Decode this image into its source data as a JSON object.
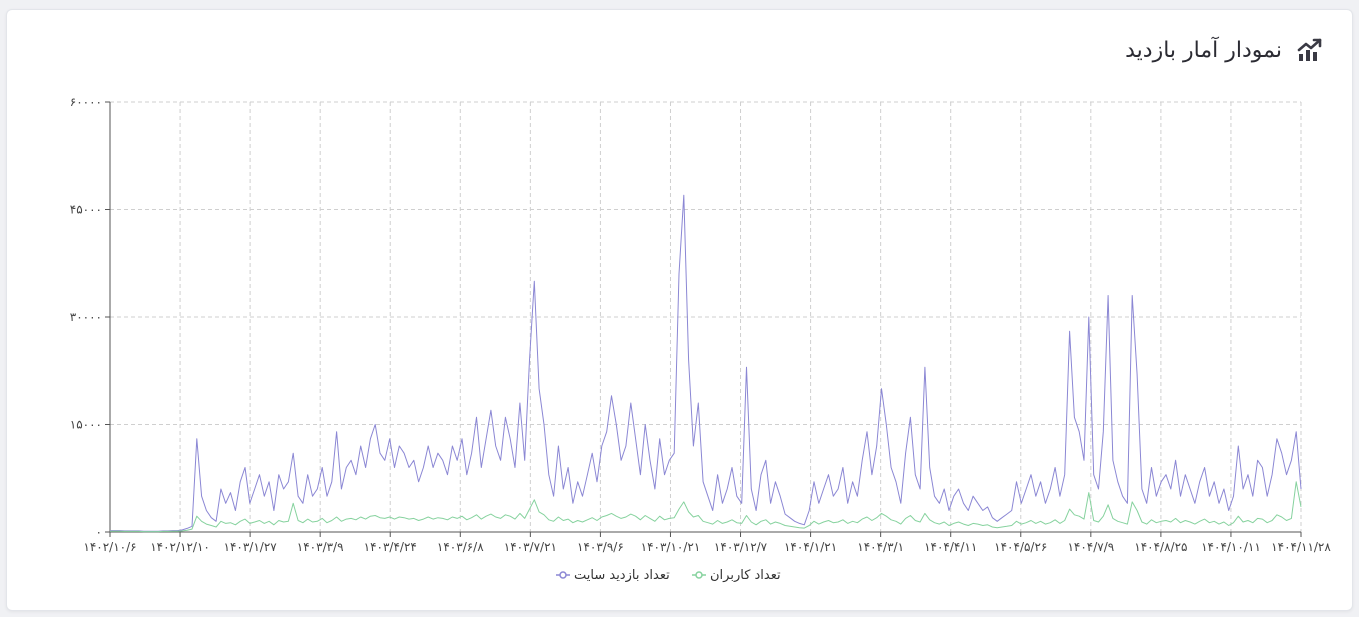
{
  "header": {
    "title": "نمودار آمار بازدید",
    "icon": "trending-up-chart-icon"
  },
  "colors": {
    "visits": "#8b87d4",
    "users": "#86d29e",
    "grid": "#cfcfcf",
    "axis": "#555555"
  },
  "chart_data": {
    "type": "line",
    "title": "",
    "xlabel": "",
    "ylabel": "",
    "ylim": [
      0,
      60000
    ],
    "yticks": [
      "۰",
      "۱۵۰۰۰",
      "۳۰۰۰۰",
      "۴۵۰۰۰",
      "۶۰۰۰۰"
    ],
    "xticks": [
      "۱۴۰۲/۱۰/۶",
      "۱۴۰۲/۱۲/۱۰",
      "۱۴۰۳/۱/۲۷",
      "۱۴۰۳/۳/۹",
      "۱۴۰۳/۴/۲۴",
      "۱۴۰۳/۶/۸",
      "۱۴۰۳/۷/۲۱",
      "۱۴۰۳/۹/۶",
      "۱۴۰۳/۱۰/۲۱",
      "۱۴۰۳/۱۲/۷",
      "۱۴۰۴/۱/۲۱",
      "۱۴۰۴/۳/۱",
      "۱۴۰۴/۴/۱۱",
      "۱۴۰۴/۵/۲۶",
      "۱۴۰۴/۷/۹",
      "۱۴۰۴/۸/۲۵",
      "۱۴۰۴/۱۰/۱۱",
      "۱۴۰۴/۱۱/۲۸"
    ],
    "grid": true,
    "legend_position": "bottom-center",
    "series": [
      {
        "name": "تعداد بازدید سایت",
        "values": [
          200,
          200,
          200,
          150,
          150,
          150,
          150,
          100,
          100,
          100,
          100,
          150,
          150,
          200,
          200,
          300,
          500,
          800,
          13000,
          5000,
          3000,
          2000,
          1500,
          6000,
          4000,
          5500,
          3000,
          7000,
          9000,
          4000,
          6000,
          8000,
          5000,
          7000,
          3000,
          8000,
          6000,
          7000,
          11000,
          5000,
          4000,
          8000,
          5000,
          6000,
          9000,
          5000,
          7000,
          14000,
          6000,
          9000,
          10000,
          8000,
          12000,
          9000,
          13000,
          15000,
          11000,
          10000,
          13000,
          9000,
          12000,
          11000,
          9000,
          10000,
          7000,
          9000,
          12000,
          9000,
          11000,
          10000,
          8000,
          12000,
          10000,
          13000,
          8000,
          11000,
          16000,
          9000,
          13000,
          17000,
          12000,
          10000,
          16000,
          13000,
          9000,
          18000,
          10000,
          24000,
          35000,
          20000,
          15000,
          8000,
          5000,
          12000,
          6000,
          9000,
          4000,
          7000,
          5000,
          8000,
          11000,
          7000,
          12000,
          14000,
          19000,
          15000,
          10000,
          12000,
          18000,
          13000,
          8000,
          15000,
          10000,
          6000,
          13000,
          8000,
          10000,
          11000,
          36000,
          47000,
          24000,
          12000,
          18000,
          7000,
          5000,
          3000,
          8000,
          4000,
          6000,
          9000,
          5000,
          4000,
          23000,
          6000,
          3000,
          8000,
          10000,
          4000,
          7000,
          5000,
          2500,
          2000,
          1500,
          1200,
          1000,
          3000,
          7000,
          4000,
          6000,
          8000,
          5000,
          6000,
          9000,
          4000,
          7000,
          5000,
          10000,
          14000,
          8000,
          12000,
          20000,
          15000,
          9000,
          7000,
          4000,
          11000,
          16000,
          8000,
          6000,
          23000,
          9000,
          5000,
          4000,
          6000,
          3000,
          5000,
          6000,
          4000,
          3000,
          5000,
          4000,
          3000,
          3500,
          2000,
          1500,
          2000,
          2500,
          3000,
          7000,
          4000,
          6000,
          8000,
          5000,
          7000,
          4000,
          6000,
          9000,
          5000,
          8000,
          28000,
          16000,
          14000,
          10000,
          30000,
          8000,
          6000,
          14000,
          33000,
          10000,
          7000,
          5000,
          4000,
          33000,
          22000,
          6000,
          4000,
          9000,
          5000,
          7000,
          8000,
          6000,
          10000,
          5000,
          8000,
          6000,
          4000,
          7000,
          9000,
          5000,
          7000,
          4000,
          6000,
          3000,
          5000,
          12000,
          6000,
          8000,
          5000,
          10000,
          9000,
          5000,
          8000,
          13000,
          11000,
          8000,
          10000,
          14000,
          6000
        ]
      },
      {
        "name": "تعداد کاربران",
        "values": [
          100,
          100,
          100,
          80,
          80,
          80,
          80,
          60,
          60,
          60,
          60,
          80,
          80,
          100,
          100,
          150,
          250,
          400,
          2200,
          1500,
          1100,
          900,
          700,
          1500,
          1200,
          1300,
          1000,
          1500,
          1800,
          1200,
          1400,
          1600,
          1200,
          1500,
          1000,
          1600,
          1400,
          1500,
          4000,
          1600,
          1300,
          1800,
          1400,
          1500,
          1900,
          1300,
          1600,
          2100,
          1500,
          1800,
          1900,
          1700,
          2100,
          1800,
          2200,
          2300,
          2000,
          1900,
          2100,
          1800,
          2100,
          2000,
          1800,
          1900,
          1600,
          1800,
          2100,
          1800,
          2000,
          1900,
          1700,
          2100,
          1900,
          2200,
          1700,
          2000,
          2400,
          1800,
          2200,
          2500,
          2100,
          1900,
          2400,
          2200,
          1800,
          2600,
          1900,
          3200,
          4500,
          2800,
          2400,
          1700,
          1500,
          2100,
          1600,
          1800,
          1300,
          1600,
          1400,
          1700,
          2000,
          1600,
          2100,
          2300,
          2600,
          2200,
          1900,
          2100,
          2500,
          2200,
          1700,
          2300,
          1900,
          1500,
          2200,
          1700,
          1900,
          2000,
          3200,
          4200,
          2800,
          2100,
          2300,
          1500,
          1300,
          1100,
          1600,
          1200,
          1400,
          1700,
          1300,
          1200,
          2300,
          1400,
          1000,
          1500,
          1700,
          1100,
          1400,
          1200,
          900,
          800,
          700,
          600,
          550,
          900,
          1500,
          1100,
          1400,
          1600,
          1300,
          1400,
          1700,
          1200,
          1500,
          1300,
          1800,
          2100,
          1600,
          2000,
          2600,
          2200,
          1700,
          1500,
          1100,
          1900,
          2300,
          1600,
          1400,
          2600,
          1700,
          1300,
          1100,
          1400,
          900,
          1200,
          1400,
          1100,
          900,
          1200,
          1100,
          900,
          1000,
          700,
          600,
          700,
          800,
          900,
          1500,
          1100,
          1300,
          1600,
          1200,
          1500,
          1100,
          1300,
          1700,
          1200,
          1600,
          3200,
          2400,
          2200,
          1800,
          5500,
          1600,
          1400,
          2200,
          3800,
          1900,
          1500,
          1300,
          1100,
          4200,
          3000,
          1400,
          1100,
          1700,
          1300,
          1500,
          1600,
          1400,
          1900,
          1300,
          1600,
          1400,
          1100,
          1500,
          1800,
          1300,
          1500,
          1100,
          1400,
          900,
          1300,
          2200,
          1400,
          1600,
          1300,
          1900,
          1800,
          1300,
          1600,
          2400,
          2100,
          1600,
          1900,
          7000,
          3500
        ]
      }
    ]
  }
}
